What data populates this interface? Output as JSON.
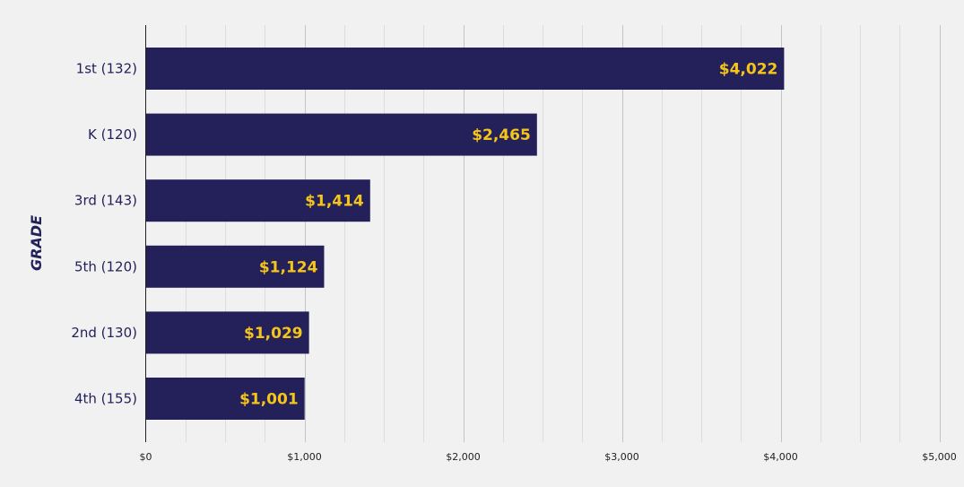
{
  "chart_data": {
    "type": "bar",
    "orientation": "horizontal",
    "categories": [
      "1st (132)",
      "K (120)",
      "3rd (143)",
      "5th (120)",
      "2nd (130)",
      "4th (155)"
    ],
    "values": [
      4022,
      2465,
      1414,
      1124,
      1029,
      1001
    ],
    "value_labels": [
      "$4,022",
      "$2,465",
      "$1,414",
      "$1,124",
      "$1,029",
      "$1,001"
    ],
    "xlim": [
      0,
      5000
    ],
    "x_ticks": [
      0,
      1000,
      2000,
      3000,
      4000,
      5000
    ],
    "x_tick_labels": [
      "$0",
      "$1,000",
      "$2,000",
      "$3,000",
      "$4,000",
      "$5,000"
    ],
    "ylabel": "GRADE",
    "xlabel": "",
    "grid": true,
    "colors": {
      "bar": "#24215a",
      "value_label": "#f5c518",
      "background": "#f1f1f1"
    }
  }
}
